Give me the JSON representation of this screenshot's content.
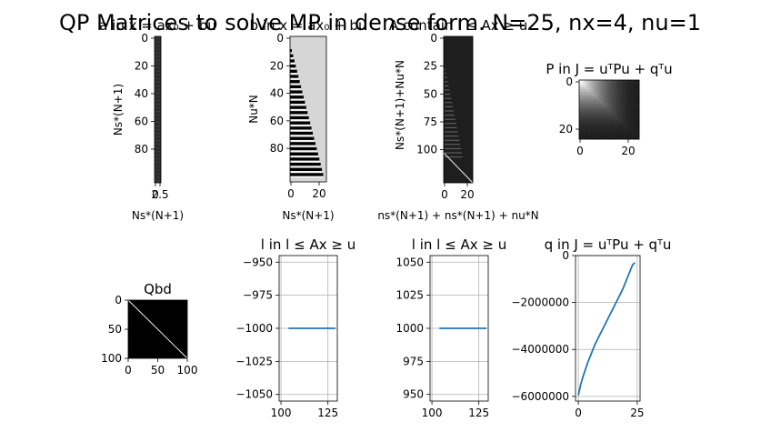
{
  "suptitle": "QP Matrices to solve MP in dense form. N=25, nx=4, nu=1",
  "chart_data": [
    {
      "id": "ax1",
      "type": "heatmap",
      "title": "a in x = ax₀ + bu",
      "xlabel": "Ns*(N+1)",
      "ylabel": "Ns*(N+1)",
      "xticks": [
        "0",
        "2.5"
      ],
      "yticks": [
        "0",
        "20",
        "40",
        "60",
        "80"
      ],
      "ylim": [
        0,
        103
      ],
      "shape": "104 x 4"
    },
    {
      "id": "ax2",
      "type": "heatmap",
      "title": "b in x = ax₀ + bu",
      "xlabel": "Ns*(N+1)",
      "ylabel": "Nu*N",
      "xticks": [
        "0",
        "20"
      ],
      "yticks": [
        "0",
        "20",
        "40",
        "60",
        "80"
      ],
      "shape": "104 x 25"
    },
    {
      "id": "ax3",
      "type": "heatmap",
      "title": "A contain  l ≤ Ax ≥ u",
      "xlabel": "ns*(N+1) + ns*(N+1) + nu*N",
      "ylabel": "Ns*(N+1)+Nu*N",
      "xticks": [
        "0",
        "20"
      ],
      "yticks": [
        "0",
        "25",
        "50",
        "75",
        "100"
      ],
      "shape": "129 x 25"
    },
    {
      "id": "ax4",
      "type": "heatmap",
      "title": "P in J = uᵀPu + qᵀu",
      "xticks": [
        "0",
        "20"
      ],
      "yticks": [
        "0",
        "20"
      ],
      "shape": "25 x 25"
    },
    {
      "id": "ax5",
      "type": "heatmap",
      "title": "Qbd",
      "xticks": [
        "0",
        "50",
        "100"
      ],
      "yticks": [
        "0",
        "50",
        "100"
      ],
      "shape": "104 x 104"
    },
    {
      "id": "ax6",
      "type": "line",
      "title": "l in  l ≤ Ax ≥ u",
      "xticks": [
        "100",
        "125"
      ],
      "yticks": [
        "−950",
        "−975",
        "−1000",
        "−1025",
        "−1050"
      ],
      "xlim": [
        99,
        130
      ],
      "ylim": [
        -1055,
        -945
      ],
      "grid": true,
      "series": [
        {
          "x": [
            104,
            129
          ],
          "y": [
            -1000,
            -1000
          ],
          "color": "#1f77b4"
        }
      ]
    },
    {
      "id": "ax7",
      "type": "line",
      "title": "l in  l ≤ Ax ≥ u",
      "xticks": [
        "100",
        "125"
      ],
      "yticks": [
        "1050",
        "1025",
        "1000",
        "975",
        "950"
      ],
      "xlim": [
        99,
        130
      ],
      "ylim": [
        945,
        1055
      ],
      "grid": true,
      "series": [
        {
          "x": [
            104,
            129
          ],
          "y": [
            1000,
            1000
          ],
          "color": "#1f77b4"
        }
      ]
    },
    {
      "id": "ax8",
      "type": "line",
      "title": "q in J = uᵀPu + qᵀu",
      "xticks": [
        "0",
        "25"
      ],
      "yticks": [
        "0",
        "−2000000",
        "−4000000",
        "−6000000"
      ],
      "xlim": [
        -1.2,
        26.2
      ],
      "ylim": [
        -6200000,
        0
      ],
      "grid": true,
      "series": [
        {
          "x": [
            0,
            1,
            2,
            3,
            4,
            5,
            6,
            7,
            8,
            9,
            10,
            11,
            12,
            13,
            14,
            15,
            16,
            17,
            18,
            19,
            20,
            21,
            22,
            23,
            24
          ],
          "y": [
            -5950000,
            -5500000,
            -5150000,
            -4850000,
            -4550000,
            -4300000,
            -4050000,
            -3800000,
            -3600000,
            -3400000,
            -3200000,
            -3000000,
            -2800000,
            -2600000,
            -2400000,
            -2200000,
            -2000000,
            -1800000,
            -1600000,
            -1400000,
            -1150000,
            -900000,
            -650000,
            -400000,
            -300000
          ],
          "color": "#1f77b4"
        }
      ]
    }
  ]
}
